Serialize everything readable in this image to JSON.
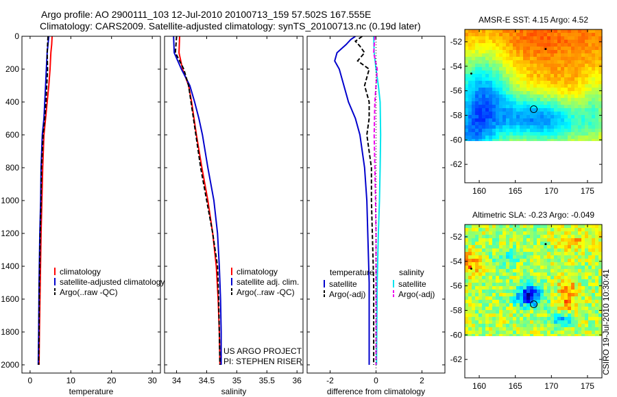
{
  "figure": {
    "title_line1": "Argo profile: AO 2900111_103 12-Jul-2010 20100713_159 57.502S 167.555E",
    "title_line2": "Climatology: CARS2009. Satellite-adjusted climatology: synTS_20100713.nc (0.19d later)",
    "watermark": "CSIRO 19-Jul-2010 10:30:41",
    "credit_line1": "US ARGO PROJECT",
    "credit_line2": "PI: STEPHEN RISER"
  },
  "colors": {
    "climatology": "#ff0000",
    "satellite": "#0000cc",
    "argo": "#000000",
    "sat_diff_salinity": "#00e5ee",
    "argo_diff_salinity": "#ee00ee"
  },
  "chart_data": [
    {
      "id": "temperature",
      "type": "line",
      "xlabel": "temperature",
      "ylabel": "",
      "xlim": [
        -2,
        32
      ],
      "ylim": [
        2050,
        0
      ],
      "xticks": [
        0,
        10,
        20,
        30
      ],
      "yticks": [
        0,
        200,
        400,
        600,
        800,
        1000,
        1200,
        1400,
        1600,
        1800,
        2000
      ],
      "legend": {
        "position": "lower-right",
        "entries": [
          "climatology",
          "satellite-adjusted climatology",
          "Argo(..raw -QC)"
        ]
      },
      "series": [
        {
          "name": "climatology",
          "color": "#ff0000",
          "dash": "",
          "depth": [
            0,
            50,
            100,
            200,
            300,
            400,
            500,
            600,
            800,
            1000,
            1200,
            1500,
            1800,
            2000
          ],
          "values": [
            5.4,
            5.3,
            5.1,
            4.9,
            4.6,
            4.2,
            3.8,
            3.4,
            3.1,
            2.9,
            2.7,
            2.5,
            2.3,
            2.2
          ]
        },
        {
          "name": "satellite-adjusted climatology",
          "color": "#0000cc",
          "dash": "",
          "depth": [
            0,
            50,
            100,
            200,
            300,
            400,
            500,
            600,
            800,
            1000,
            1200,
            1500,
            1800,
            2000
          ],
          "values": [
            4.6,
            4.4,
            4.2,
            4.0,
            3.8,
            3.6,
            3.4,
            3.0,
            2.7,
            2.6,
            2.4,
            2.2,
            2.1,
            2.0
          ]
        },
        {
          "name": "Argo(..raw -QC)",
          "color": "#000000",
          "dash": "6,3",
          "depth": [
            0,
            50,
            100,
            200,
            300,
            400,
            500,
            600,
            800,
            1000,
            1200,
            1500,
            1800,
            2000
          ],
          "values": [
            4.4,
            4.3,
            4.2,
            4.3,
            4.1,
            3.9,
            3.6,
            3.2,
            2.8,
            2.7,
            2.5,
            2.3,
            2.2,
            2.1
          ]
        }
      ]
    },
    {
      "id": "salinity",
      "type": "line",
      "xlabel": "salinity",
      "ylabel": "",
      "xlim": [
        33.8,
        36.1
      ],
      "ylim": [
        2050,
        0
      ],
      "xticks": [
        34,
        34.5,
        35,
        35.5,
        36
      ],
      "yticks": [
        0,
        200,
        400,
        600,
        800,
        1000,
        1200,
        1400,
        1600,
        1800,
        2000
      ],
      "legend": {
        "position": "lower-right",
        "entries": [
          "climatology",
          "satellite adj. clim.",
          "Argo(..raw -QC)"
        ]
      },
      "series": [
        {
          "name": "climatology",
          "color": "#ff0000",
          "dash": "",
          "depth": [
            0,
            100,
            200,
            300,
            400,
            500,
            600,
            800,
            1000,
            1200,
            1400,
            1600,
            1800,
            2000
          ],
          "values": [
            34.05,
            34.04,
            34.1,
            34.2,
            34.25,
            34.29,
            34.33,
            34.42,
            34.52,
            34.6,
            34.66,
            34.69,
            34.71,
            34.72
          ]
        },
        {
          "name": "satellite adj. clim.",
          "color": "#0000cc",
          "dash": "",
          "depth": [
            0,
            100,
            200,
            300,
            400,
            500,
            600,
            800,
            1000,
            1200,
            1400,
            1600,
            1800,
            2000
          ],
          "values": [
            33.95,
            33.96,
            34.08,
            34.22,
            34.3,
            34.37,
            34.43,
            34.52,
            34.62,
            34.68,
            34.71,
            34.73,
            34.74,
            34.74
          ]
        },
        {
          "name": "Argo(..raw -QC)",
          "color": "#000000",
          "dash": "6,3",
          "depth": [
            0,
            100,
            150,
            200,
            300,
            400,
            500,
            600,
            800,
            1000,
            1200,
            1400,
            1600,
            1800,
            2000
          ],
          "values": [
            34.0,
            33.98,
            34.05,
            34.12,
            34.2,
            34.24,
            34.28,
            34.32,
            34.4,
            34.5,
            34.6,
            34.68,
            34.7,
            34.71,
            34.72
          ]
        }
      ]
    },
    {
      "id": "difference",
      "type": "line",
      "xlabel": "difference from climatology",
      "ylabel": "",
      "xlim": [
        -3,
        3
      ],
      "ylim": [
        2050,
        0
      ],
      "xticks": [
        -2,
        0,
        2
      ],
      "yticks": [
        0,
        200,
        400,
        600,
        800,
        1000,
        1200,
        1400,
        1600,
        1800,
        2000
      ],
      "legend": {
        "position": "lower",
        "temperature_header": "temperature",
        "salinity_header": "salinity",
        "entries": [
          "satellite",
          "Argo(-adj)",
          "satellite",
          "Argo(-adj)"
        ]
      },
      "series": [
        {
          "name": "temperature satellite",
          "color": "#0000cc",
          "dash": "",
          "depth": [
            0,
            20,
            50,
            100,
            150,
            200,
            300,
            400,
            500,
            600,
            800,
            1000,
            1500,
            2000
          ],
          "values": [
            -0.9,
            -1.1,
            -1.3,
            -1.7,
            -1.8,
            -1.6,
            -1.4,
            -1.2,
            -0.9,
            -0.7,
            -0.5,
            -0.4,
            -0.3,
            -0.3
          ]
        },
        {
          "name": "temperature Argo(-adj)",
          "color": "#000000",
          "dash": "6,3",
          "depth": [
            0,
            30,
            60,
            100,
            150,
            200,
            300,
            400,
            500,
            600,
            800,
            1000,
            1500,
            2000
          ],
          "values": [
            -0.6,
            -0.9,
            -0.7,
            -0.5,
            -0.8,
            -0.3,
            -0.5,
            -0.3,
            -0.3,
            -0.4,
            -0.2,
            -0.2,
            -0.1,
            -0.1
          ]
        },
        {
          "name": "salinity satellite",
          "color": "#00e5ee",
          "dash": "",
          "depth": [
            0,
            100,
            200,
            300,
            400,
            600,
            800,
            1000,
            1200,
            1500,
            2000
          ],
          "values": [
            -0.1,
            -0.08,
            0.0,
            0.1,
            0.18,
            0.2,
            0.18,
            0.15,
            0.1,
            0.05,
            0.02
          ]
        },
        {
          "name": "salinity Argo(-adj)",
          "color": "#ee00ee",
          "dash": "6,3",
          "depth": [
            0,
            100,
            200,
            300,
            400,
            600,
            800,
            1000,
            1200,
            1500,
            2000
          ],
          "values": [
            -0.05,
            -0.1,
            0.05,
            0.0,
            -0.05,
            -0.08,
            -0.05,
            -0.02,
            0.0,
            0.0,
            0.0
          ]
        }
      ]
    },
    {
      "id": "sst_map",
      "type": "heatmap",
      "title": "AMSR-E SST: 4.15 Argo: 4.52",
      "xlim": [
        158,
        177
      ],
      "ylim": [
        -63.5,
        -51
      ],
      "xticks": [
        160,
        165,
        170,
        175
      ],
      "yticks": [
        -52,
        -54,
        -56,
        -58,
        -60,
        -62
      ],
      "profile_marker": {
        "lon": 167.555,
        "lat": -57.502
      },
      "data_bottom_lat": -60.1
    },
    {
      "id": "sla_map",
      "type": "heatmap",
      "title": "Altimetric SLA: -0.23 Argo: -0.049",
      "xlim": [
        158,
        177
      ],
      "ylim": [
        -63.5,
        -51
      ],
      "xticks": [
        160,
        165,
        170,
        175
      ],
      "yticks": [
        -52,
        -54,
        -56,
        -58,
        -60,
        -62
      ],
      "profile_marker": {
        "lon": 167.555,
        "lat": -57.502
      },
      "data_bottom_lat": -60.1
    }
  ]
}
